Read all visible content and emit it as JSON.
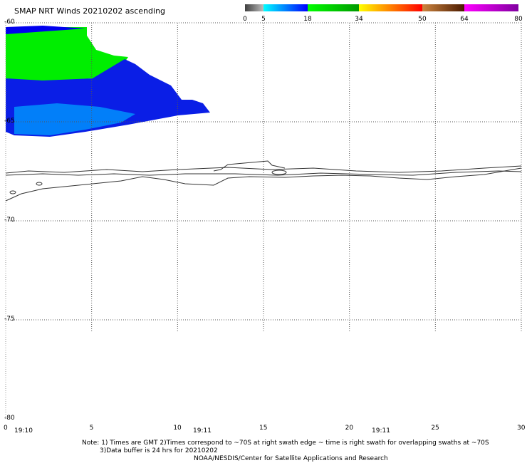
{
  "title": "SMAP NRT Winds 20210202 ascending",
  "colorbar": {
    "ticks": [
      "0",
      "5",
      "18",
      "34",
      "50",
      "64",
      "80"
    ],
    "segments": [
      {
        "from": 0,
        "to": 5,
        "colors": [
          "#404040",
          "#bdbdbd"
        ]
      },
      {
        "from": 5,
        "to": 18,
        "colors": [
          "#00ffff",
          "#0000ff"
        ]
      },
      {
        "from": 18,
        "to": 34,
        "colors": [
          "#00ff00",
          "#009900"
        ]
      },
      {
        "from": 34,
        "to": 50,
        "colors": [
          "#ffff00",
          "#ff8000",
          "#ff0000"
        ]
      },
      {
        "from": 50,
        "to": 64,
        "colors": [
          "#cd853f",
          "#4a1a00"
        ]
      },
      {
        "from": 64,
        "to": 80,
        "colors": [
          "#ff00ff",
          "#8000a0"
        ]
      }
    ]
  },
  "map": {
    "lat_range": [
      -80,
      -60
    ],
    "lon_range": [
      0,
      30
    ],
    "lat_ticks": [
      "-60",
      "-65",
      "-70",
      "-75",
      "-80"
    ],
    "lon_ticks": [
      "0",
      "5",
      "10",
      "15",
      "20",
      "25",
      "30"
    ],
    "times": [
      "19:10",
      "19:11",
      "19:11"
    ]
  },
  "notes": {
    "line1": "Note: 1) Times are GMT 2)Times correspond to ~70S at right swath edge ~ time is right swath for overlapping swaths at ~70S",
    "line2": "3)Data buffer is 24 hrs for 20210202",
    "line3": "NOAA/NESDIS/Center for Satellite Applications and Research"
  },
  "colors": {
    "wind_green": "#00ee00",
    "wind_blue": "#0000ee",
    "wind_lightblue": "#00aaff",
    "coast": "#333333"
  }
}
